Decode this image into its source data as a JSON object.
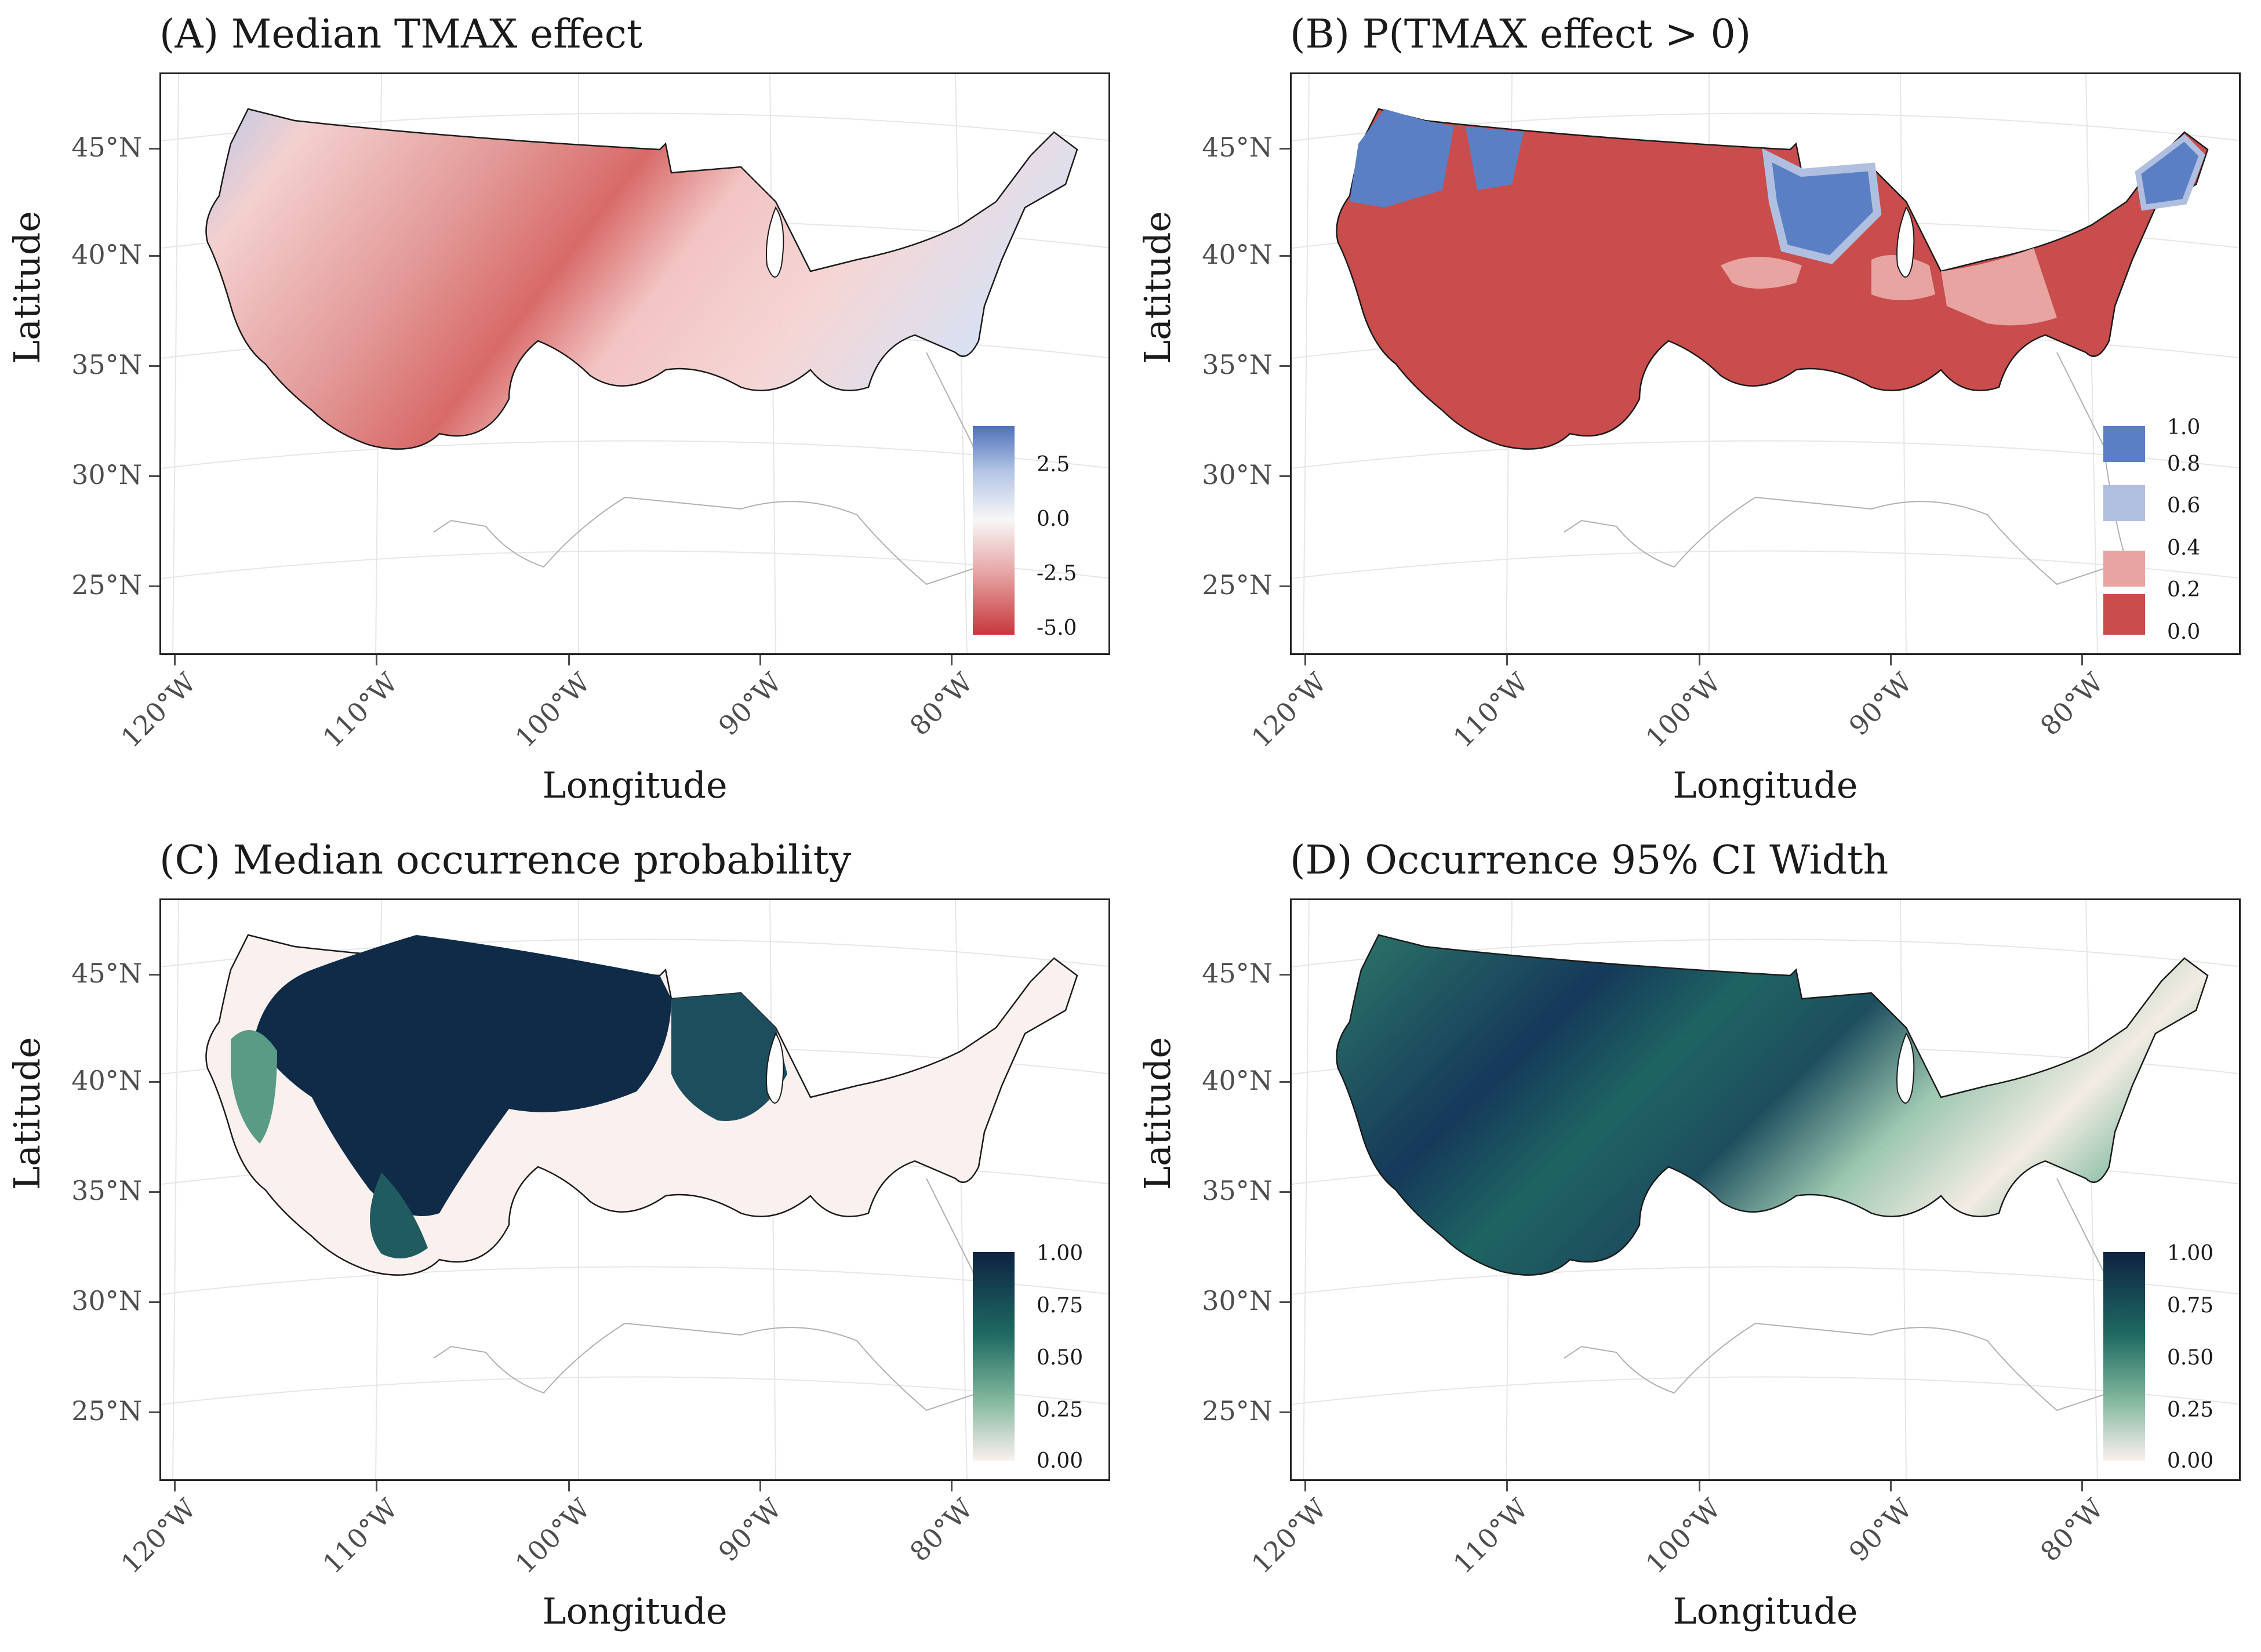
{
  "axes": {
    "xlabel": "Longitude",
    "ylabel": "Latitude",
    "lat_ticks": [
      "45°N",
      "40°N",
      "35°N",
      "30°N",
      "25°N"
    ],
    "lon_ticks": [
      "120°W",
      "110°W",
      "100°W",
      "90°W",
      "80°W"
    ]
  },
  "panels": [
    {
      "title": "(A) Median TMAX effect",
      "legend_type": "continuous",
      "legend_labels": [
        "2.5",
        "0.0",
        "-2.5",
        "-5.0"
      ],
      "colors": [
        "#4e72b8",
        "#f7f7f7",
        "#c8373d"
      ]
    },
    {
      "title": "(B) P(TMAX effect > 0)",
      "legend_type": "binned",
      "legend_labels": [
        "1.0",
        "0.8",
        "0.6",
        "0.4",
        "0.2",
        "0.0"
      ],
      "colors": [
        "#5b7fc4",
        "#b0bfe0",
        "#e7a4a1",
        "#c84d4c"
      ]
    },
    {
      "title": "(C) Median occurrence probability",
      "legend_type": "continuous",
      "legend_labels": [
        "1.00",
        "0.75",
        "0.50",
        "0.25",
        "0.00"
      ],
      "colors": [
        "#0d2240",
        "#1f6b63",
        "#7fb59b",
        "#faf1ee"
      ]
    },
    {
      "title": "(D) Occurrence 95% CI Width",
      "legend_type": "continuous",
      "legend_labels": [
        "1.00",
        "0.75",
        "0.50",
        "0.25",
        "0.00"
      ],
      "colors": [
        "#0d2240",
        "#1f6b63",
        "#7fb59b",
        "#faf1ee"
      ]
    }
  ]
}
